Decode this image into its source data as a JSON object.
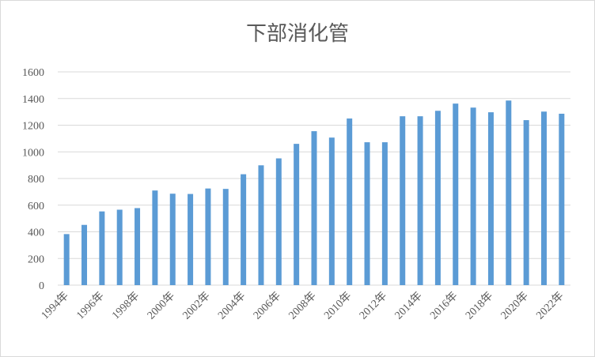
{
  "chart_data": {
    "type": "bar",
    "title": "下部消化管",
    "xlabel": "",
    "ylabel": "",
    "ylim": [
      0,
      1600
    ],
    "yticks": [
      0,
      200,
      400,
      600,
      800,
      1000,
      1200,
      1400,
      1600
    ],
    "grid": true,
    "legend": "none",
    "colors": {
      "bar": "#5b9bd5",
      "grid": "#d9d9d9",
      "text": "#595959"
    },
    "categories": [
      "1994年",
      "1995年",
      "1996年",
      "1997年",
      "1998年",
      "1999年",
      "2000年",
      "2001年",
      "2002年",
      "2003年",
      "2004年",
      "2005年",
      "2006年",
      "2007年",
      "2008年",
      "2009年",
      "2010年",
      "2011年",
      "2012年",
      "2013年",
      "2014年",
      "2015年",
      "2016年",
      "2017年",
      "2018年",
      "2019年",
      "2020年",
      "2021年",
      "2022年"
    ],
    "tick_labels": [
      "1994年",
      "",
      "1996年",
      "",
      "1998年",
      "",
      "2000年",
      "",
      "2002年",
      "",
      "2004年",
      "",
      "2006年",
      "",
      "2008年",
      "",
      "2010年",
      "",
      "2012年",
      "",
      "2014年",
      "",
      "2016年",
      "",
      "2018年",
      "",
      "2020年",
      "",
      "2022年"
    ],
    "values": [
      383,
      452,
      553,
      566,
      578,
      710,
      686,
      684,
      725,
      722,
      832,
      899,
      951,
      1060,
      1155,
      1107,
      1250,
      1072,
      1072,
      1267,
      1267,
      1308,
      1362,
      1332,
      1297,
      1385,
      1238,
      1302,
      1286
    ]
  }
}
